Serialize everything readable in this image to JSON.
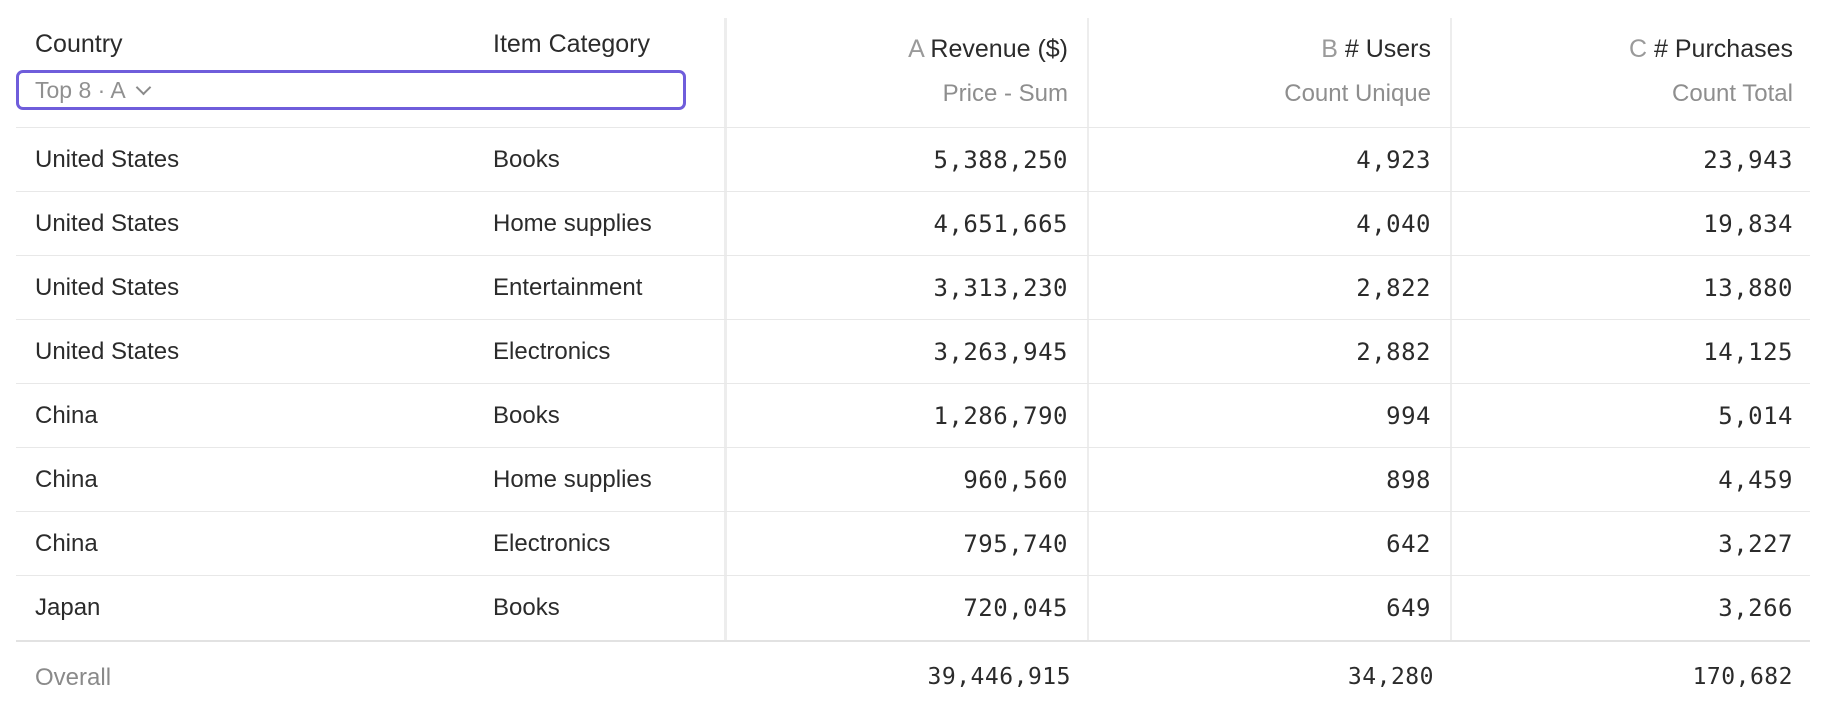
{
  "header": {
    "country_label": "Country",
    "category_label": "Item Category",
    "topn_label": "Top 8 · A",
    "metrics": [
      {
        "letter": "A",
        "title": "Revenue ($)",
        "subtitle": "Price - Sum"
      },
      {
        "letter": "B",
        "title": "# Users",
        "subtitle": "Count Unique"
      },
      {
        "letter": "C",
        "title": "# Purchases",
        "subtitle": "Count Total"
      }
    ]
  },
  "rows": [
    {
      "country": "United States",
      "category": "Books",
      "revenue": "5,388,250",
      "users": "4,923",
      "purchases": "23,943"
    },
    {
      "country": "United States",
      "category": "Home supplies",
      "revenue": "4,651,665",
      "users": "4,040",
      "purchases": "19,834"
    },
    {
      "country": "United States",
      "category": "Entertainment",
      "revenue": "3,313,230",
      "users": "2,822",
      "purchases": "13,880"
    },
    {
      "country": "United States",
      "category": "Electronics",
      "revenue": "3,263,945",
      "users": "2,882",
      "purchases": "14,125"
    },
    {
      "country": "China",
      "category": "Books",
      "revenue": "1,286,790",
      "users": "994",
      "purchases": "5,014"
    },
    {
      "country": "China",
      "category": "Home supplies",
      "revenue": "960,560",
      "users": "898",
      "purchases": "4,459"
    },
    {
      "country": "China",
      "category": "Electronics",
      "revenue": "795,740",
      "users": "642",
      "purchases": "3,227"
    },
    {
      "country": "Japan",
      "category": "Books",
      "revenue": "720,045",
      "users": "649",
      "purchases": "3,266"
    }
  ],
  "overall": {
    "label": "Overall",
    "revenue": "39,446,915",
    "users": "34,280",
    "purchases": "170,682"
  },
  "colors": {
    "accent": "#6f5ddb",
    "muted": "#8e8e8e",
    "text": "#2b2b2b"
  }
}
